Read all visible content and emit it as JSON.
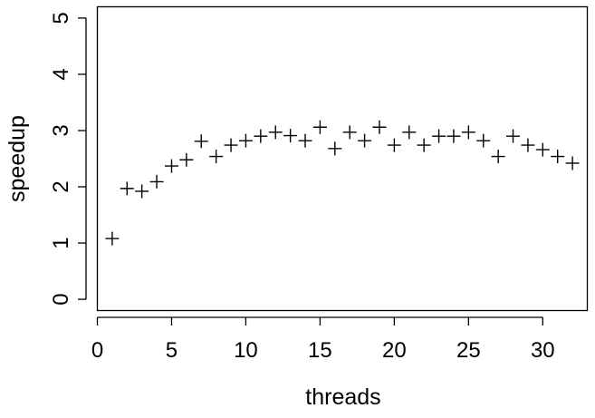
{
  "chart_data": {
    "type": "scatter",
    "title": "",
    "xlabel": "threads",
    "ylabel": "speedup",
    "xlim": [
      0,
      33
    ],
    "ylim": [
      -0.2,
      5.2
    ],
    "xticks": [
      0,
      5,
      10,
      15,
      20,
      25,
      30
    ],
    "yticks": [
      0,
      1,
      2,
      3,
      4,
      5
    ],
    "grid": false,
    "legend": "none",
    "marker": "plus",
    "color": "#000000",
    "series": [
      {
        "x": [
          1,
          2,
          3,
          4,
          5,
          6,
          7,
          8,
          9,
          10,
          11,
          12,
          13,
          14,
          15,
          16,
          17,
          18,
          19,
          20,
          21,
          22,
          23,
          24,
          25,
          26,
          27,
          28,
          29,
          30,
          31,
          32
        ],
        "y": [
          1.08,
          1.97,
          1.92,
          2.09,
          2.37,
          2.48,
          2.81,
          2.54,
          2.74,
          2.82,
          2.9,
          2.97,
          2.91,
          2.82,
          3.06,
          2.68,
          2.97,
          2.82,
          3.06,
          2.74,
          2.97,
          2.74,
          2.9,
          2.9,
          2.97,
          2.82,
          2.54,
          2.9,
          2.74,
          2.66,
          2.54,
          2.42
        ]
      }
    ]
  }
}
